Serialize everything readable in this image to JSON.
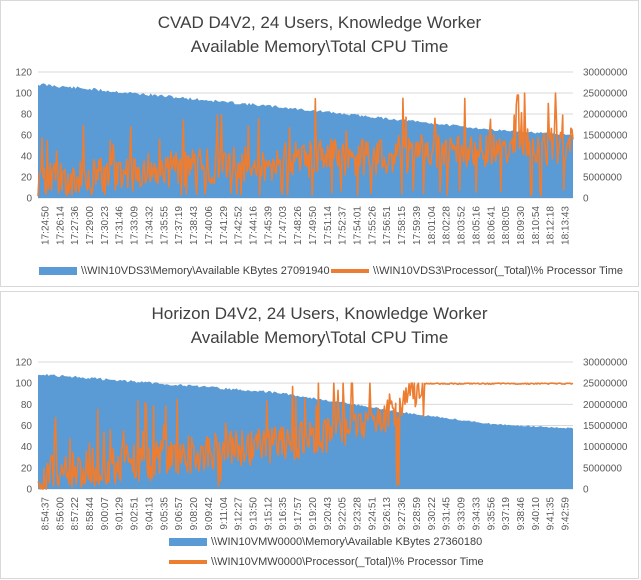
{
  "colors": {
    "memory": "#5b9bd5",
    "cpu": "#ed7d31",
    "grid": "#d9d9d9",
    "text": "#595959"
  },
  "chart_data": [
    {
      "type": "area",
      "title_line1": "CVAD D4V2, 24 Users, Knowledge Worker",
      "title_line2": "Available Memory\\Total CPU Time",
      "y_left_ticks": [
        "0",
        "20",
        "40",
        "60",
        "80",
        "100",
        "120"
      ],
      "y_right_ticks": [
        "0",
        "5000000",
        "10000000",
        "15000000",
        "20000000",
        "25000000",
        "30000000"
      ],
      "ylim_left": [
        0,
        120
      ],
      "ylim_right": [
        0,
        30000000
      ],
      "grid": true,
      "x_ticks": [
        "17:24:50",
        "17:26:14",
        "17:27:36",
        "17:29:00",
        "17:30:23",
        "17:31:46",
        "17:33:09",
        "17:34:32",
        "17:35:55",
        "17:37:19",
        "17:38:43",
        "17:40:06",
        "17:41:29",
        "17:42:52",
        "17:44:16",
        "17:45:39",
        "17:47:03",
        "17:48:26",
        "17:49:50",
        "17:51:14",
        "17:52:37",
        "17:54:01",
        "17:55:26",
        "17:56:51",
        "17:58:15",
        "17:59:39",
        "18:01:04",
        "18:02:28",
        "18:03:52",
        "18:05:16",
        "18:06:41",
        "18:08:05",
        "18:09:30",
        "18:10:54",
        "18:12:18",
        "18:13:43"
      ],
      "series": [
        {
          "name": "\\\\WIN10VDS3\\Memory\\Available KBytes 27091940",
          "kind": "area",
          "axis": "right",
          "shape": [
            [
              0,
              27500000
            ],
            [
              0.45,
              22000000
            ],
            [
              0.85,
              16500000
            ],
            [
              1,
              15200000
            ]
          ],
          "noise": 0.05
        },
        {
          "name": "\\\\WIN10VDS3\\Processor(_Total)\\% Processor Time",
          "kind": "line",
          "axis": "left",
          "shape": [
            [
              0,
              15
            ],
            [
              0.25,
              25
            ],
            [
              0.5,
              35
            ],
            [
              0.75,
              42
            ],
            [
              1,
              48
            ]
          ],
          "noise": 18,
          "spike_max": 100
        }
      ],
      "legend_position": "bottom"
    },
    {
      "type": "area",
      "title_line1": "Horizon D4V2, 24 Users, Knowledge Worker",
      "title_line2": "Available Memory\\Total CPU Time",
      "y_left_ticks": [
        "0",
        "20",
        "40",
        "60",
        "80",
        "100",
        "120"
      ],
      "y_right_ticks": [
        "0",
        "5000000",
        "10000000",
        "15000000",
        "20000000",
        "25000000",
        "30000000"
      ],
      "ylim_left": [
        0,
        120
      ],
      "ylim_right": [
        0,
        30000000
      ],
      "grid": true,
      "x_ticks": [
        "8:54:37",
        "8:56:00",
        "8:57:22",
        "8:58:44",
        "9:00:07",
        "9:01:29",
        "9:02:51",
        "9:04:13",
        "9:05:35",
        "9:06:57",
        "9:08:20",
        "9:09:42",
        "9:11:04",
        "9:12:27",
        "9:13:50",
        "9:15:12",
        "9:16:35",
        "9:17:57",
        "9:19:20",
        "9:20:43",
        "9:22:05",
        "9:23:28",
        "9:24:51",
        "9:26:13",
        "9:27:36",
        "9:28:59",
        "9:30:22",
        "9:31:45",
        "9:33:09",
        "9:34:33",
        "9:35:56",
        "9:37:19",
        "9:38:46",
        "9:40:10",
        "9:41:35",
        "9:42:59"
      ],
      "series": [
        {
          "name": "\\\\WIN10VMW0000\\Memory\\Available KBytes 27360180",
          "kind": "area",
          "axis": "right",
          "shape": [
            [
              0,
              27500000
            ],
            [
              0.45,
              23000000
            ],
            [
              0.7,
              18000000
            ],
            [
              0.85,
              15500000
            ],
            [
              1,
              14500000
            ]
          ],
          "noise": 0.04
        },
        {
          "name": "\\\\WIN10VMW0000\\Processor(_Total)\\% Processor Time",
          "kind": "line",
          "axis": "left",
          "shape": [
            [
              0,
              12
            ],
            [
              0.25,
              28
            ],
            [
              0.5,
              45
            ],
            [
              0.65,
              68
            ],
            [
              0.72,
              100
            ],
            [
              1,
              100
            ]
          ],
          "noise": 18,
          "spike_max": 100
        }
      ],
      "legend_position": "bottom"
    }
  ]
}
